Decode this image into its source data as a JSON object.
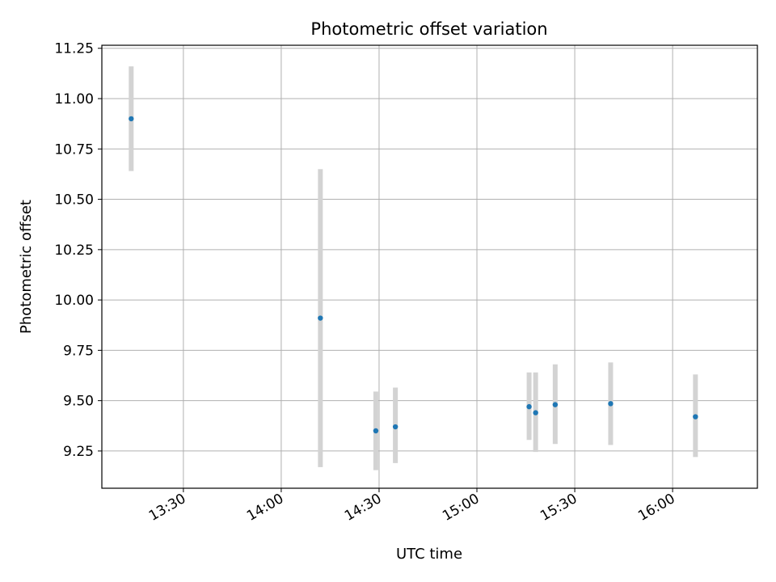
{
  "chart_data": {
    "type": "scatter",
    "title": "Photometric offset variation",
    "xlabel": "UTC time",
    "ylabel": "Photometric offset",
    "xlim": [
      "13:05",
      "16:26"
    ],
    "ylim": [
      9.065,
      11.265
    ],
    "grid": true,
    "x_ticks": [
      "13:30",
      "14:00",
      "14:30",
      "15:00",
      "15:30",
      "16:00"
    ],
    "y_ticks": [
      "9.25",
      "9.50",
      "9.75",
      "10.00",
      "10.25",
      "10.50",
      "10.75",
      "11.00",
      "11.25"
    ],
    "series": [
      {
        "marker_color": "#1f77b4",
        "errorbar_color": "#d3d3d3",
        "points": [
          {
            "time": "13:14",
            "y": 10.9,
            "yerr_low": 10.64,
            "yerr_high": 11.16
          },
          {
            "time": "14:12",
            "y": 9.91,
            "yerr_low": 9.17,
            "yerr_high": 10.65
          },
          {
            "time": "14:29",
            "y": 9.35,
            "yerr_low": 9.155,
            "yerr_high": 9.545
          },
          {
            "time": "14:35",
            "y": 9.37,
            "yerr_low": 9.19,
            "yerr_high": 9.565
          },
          {
            "time": "15:16",
            "y": 9.47,
            "yerr_low": 9.305,
            "yerr_high": 9.64
          },
          {
            "time": "15:18",
            "y": 9.44,
            "yerr_low": 9.245,
            "yerr_high": 9.64
          },
          {
            "time": "15:24",
            "y": 9.48,
            "yerr_low": 9.285,
            "yerr_high": 9.68
          },
          {
            "time": "15:41",
            "y": 9.485,
            "yerr_low": 9.28,
            "yerr_high": 9.69
          },
          {
            "time": "16:07",
            "y": 9.42,
            "yerr_low": 9.22,
            "yerr_high": 9.63
          }
        ]
      }
    ]
  }
}
